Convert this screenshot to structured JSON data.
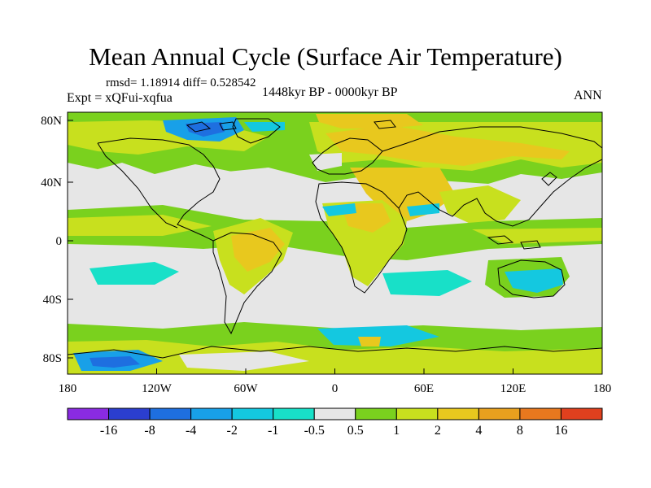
{
  "title": "Mean Annual Cycle (Surface Air Temperature)",
  "stats": "rmsd= 1.18914 diff= 0.528542",
  "experiment": "Expt = xQFui-xqfua",
  "period": "1448kyr BP - 0000kyr BP",
  "season": "ANN",
  "map": {
    "lat_labels": [
      "80N",
      "40N",
      "0",
      "40S",
      "80S"
    ],
    "lon_labels": [
      "180",
      "120W",
      "60W",
      "0",
      "60E",
      "120E",
      "180"
    ],
    "background_color": "#e6e6e6"
  },
  "colorbar": {
    "labels": [
      "-16",
      "-8",
      "-4",
      "-2",
      "-1",
      "-0.5",
      "0.5",
      "1",
      "2",
      "4",
      "8",
      "16"
    ],
    "colors": [
      "#8a2be2",
      "#2b3ecf",
      "#1e6fe0",
      "#18a0e8",
      "#14c8e0",
      "#18e0c8",
      "#e6e6e6",
      "#7ad11e",
      "#c8e01e",
      "#e8c81e",
      "#e8a01e",
      "#e8781e",
      "#e0401e"
    ]
  }
}
